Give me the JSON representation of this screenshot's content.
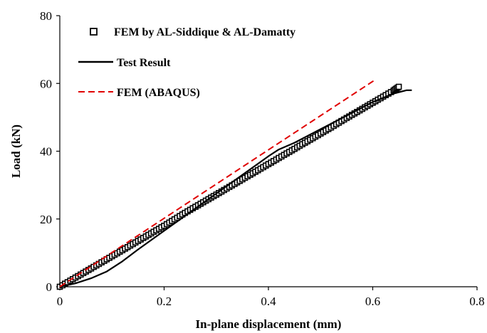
{
  "chart_data": {
    "type": "scatter",
    "title": "",
    "xlabel": "In-plane displacement (mm)",
    "ylabel": "Load (kN)",
    "xlim": [
      0,
      0.8
    ],
    "ylim": [
      0,
      80
    ],
    "x_ticks": [
      "0",
      "0.2",
      "0.4",
      "0.6",
      "0.8"
    ],
    "y_ticks": [
      "0",
      "20",
      "40",
      "60",
      "80"
    ],
    "grid": false,
    "legend_position": "top-left",
    "series": [
      {
        "name": "FEM by AL-Siddique & AL-Damatty",
        "style": "markers",
        "marker": "open-square",
        "color": "#000000",
        "x": [
          0,
          0.02,
          0.04,
          0.06,
          0.08,
          0.1,
          0.12,
          0.14,
          0.16,
          0.18,
          0.2,
          0.22,
          0.24,
          0.26,
          0.28,
          0.3,
          0.32,
          0.34,
          0.36,
          0.38,
          0.4,
          0.42,
          0.44,
          0.46,
          0.48,
          0.5,
          0.52,
          0.54,
          0.56,
          0.58,
          0.6,
          0.62,
          0.64,
          0.65
        ],
        "y": [
          0,
          1.8,
          3.6,
          5.4,
          7.2,
          9.0,
          10.8,
          12.6,
          14.4,
          16.2,
          18.0,
          19.9,
          21.8,
          23.6,
          25.4,
          27.2,
          29.0,
          30.8,
          32.6,
          34.4,
          36.2,
          38.0,
          39.8,
          41.6,
          43.4,
          45.2,
          47.0,
          48.9,
          50.7,
          52.5,
          54.3,
          56.1,
          57.9,
          59.0
        ]
      },
      {
        "name": "Test Result",
        "style": "solid-line",
        "color": "#000000",
        "x": [
          0,
          0.03,
          0.06,
          0.09,
          0.12,
          0.15,
          0.2,
          0.25,
          0.3,
          0.35,
          0.4,
          0.42,
          0.45,
          0.5,
          0.55,
          0.6,
          0.64,
          0.665,
          0.675
        ],
        "y": [
          0,
          1.0,
          2.5,
          4.5,
          7.5,
          11.0,
          16.5,
          22.0,
          27.5,
          33.0,
          38.5,
          40.5,
          42.5,
          46.5,
          50.5,
          54.5,
          57.0,
          58.0,
          58.0
        ]
      },
      {
        "name": "FEM (ABAQUS)",
        "style": "dashed-line",
        "color": "#e00000",
        "x": [
          0,
          0.1,
          0.2,
          0.3,
          0.4,
          0.5,
          0.6,
          0.605
        ],
        "y": [
          0,
          10.1,
          20.2,
          30.3,
          40.4,
          50.5,
          60.6,
          61.0
        ]
      }
    ]
  }
}
